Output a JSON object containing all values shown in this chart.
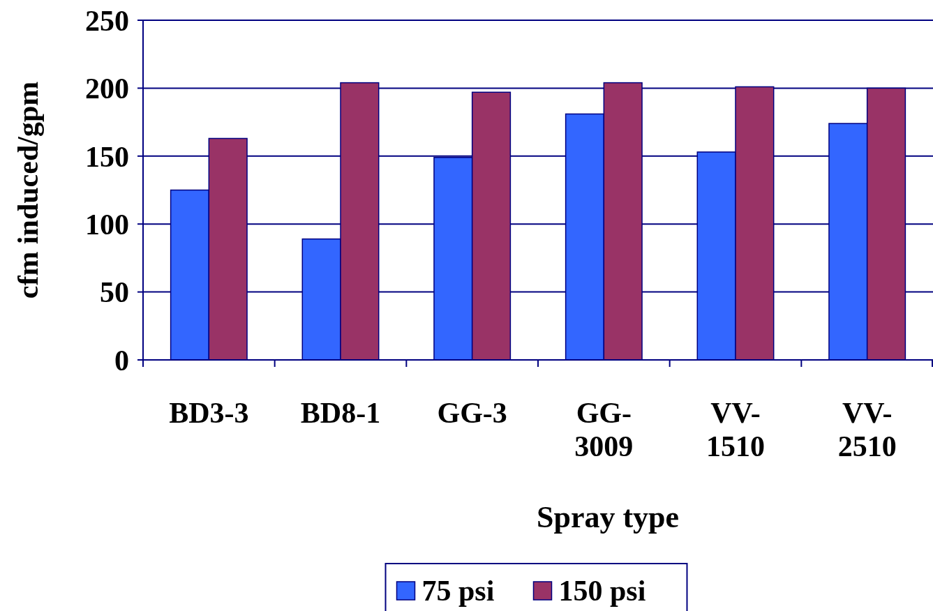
{
  "chart_data": {
    "type": "bar",
    "xlabel": "Spray type",
    "ylabel": "cfm induced/gpm",
    "categories": [
      "BD3-3",
      "BD8-1",
      "GG-3",
      "GG-3009",
      "VV-1510",
      "VV-2510"
    ],
    "series": [
      {
        "name": "75 psi",
        "color": "#3366ff",
        "values": [
          125,
          89,
          149,
          181,
          153,
          174
        ]
      },
      {
        "name": "150 psi",
        "color": "#993366",
        "values": [
          163,
          204,
          197,
          204,
          201,
          200
        ]
      }
    ],
    "ylim": [
      0,
      250
    ],
    "yticks": [
      0,
      50,
      100,
      150,
      200,
      250
    ],
    "grid": "y",
    "legend": "bottom"
  }
}
